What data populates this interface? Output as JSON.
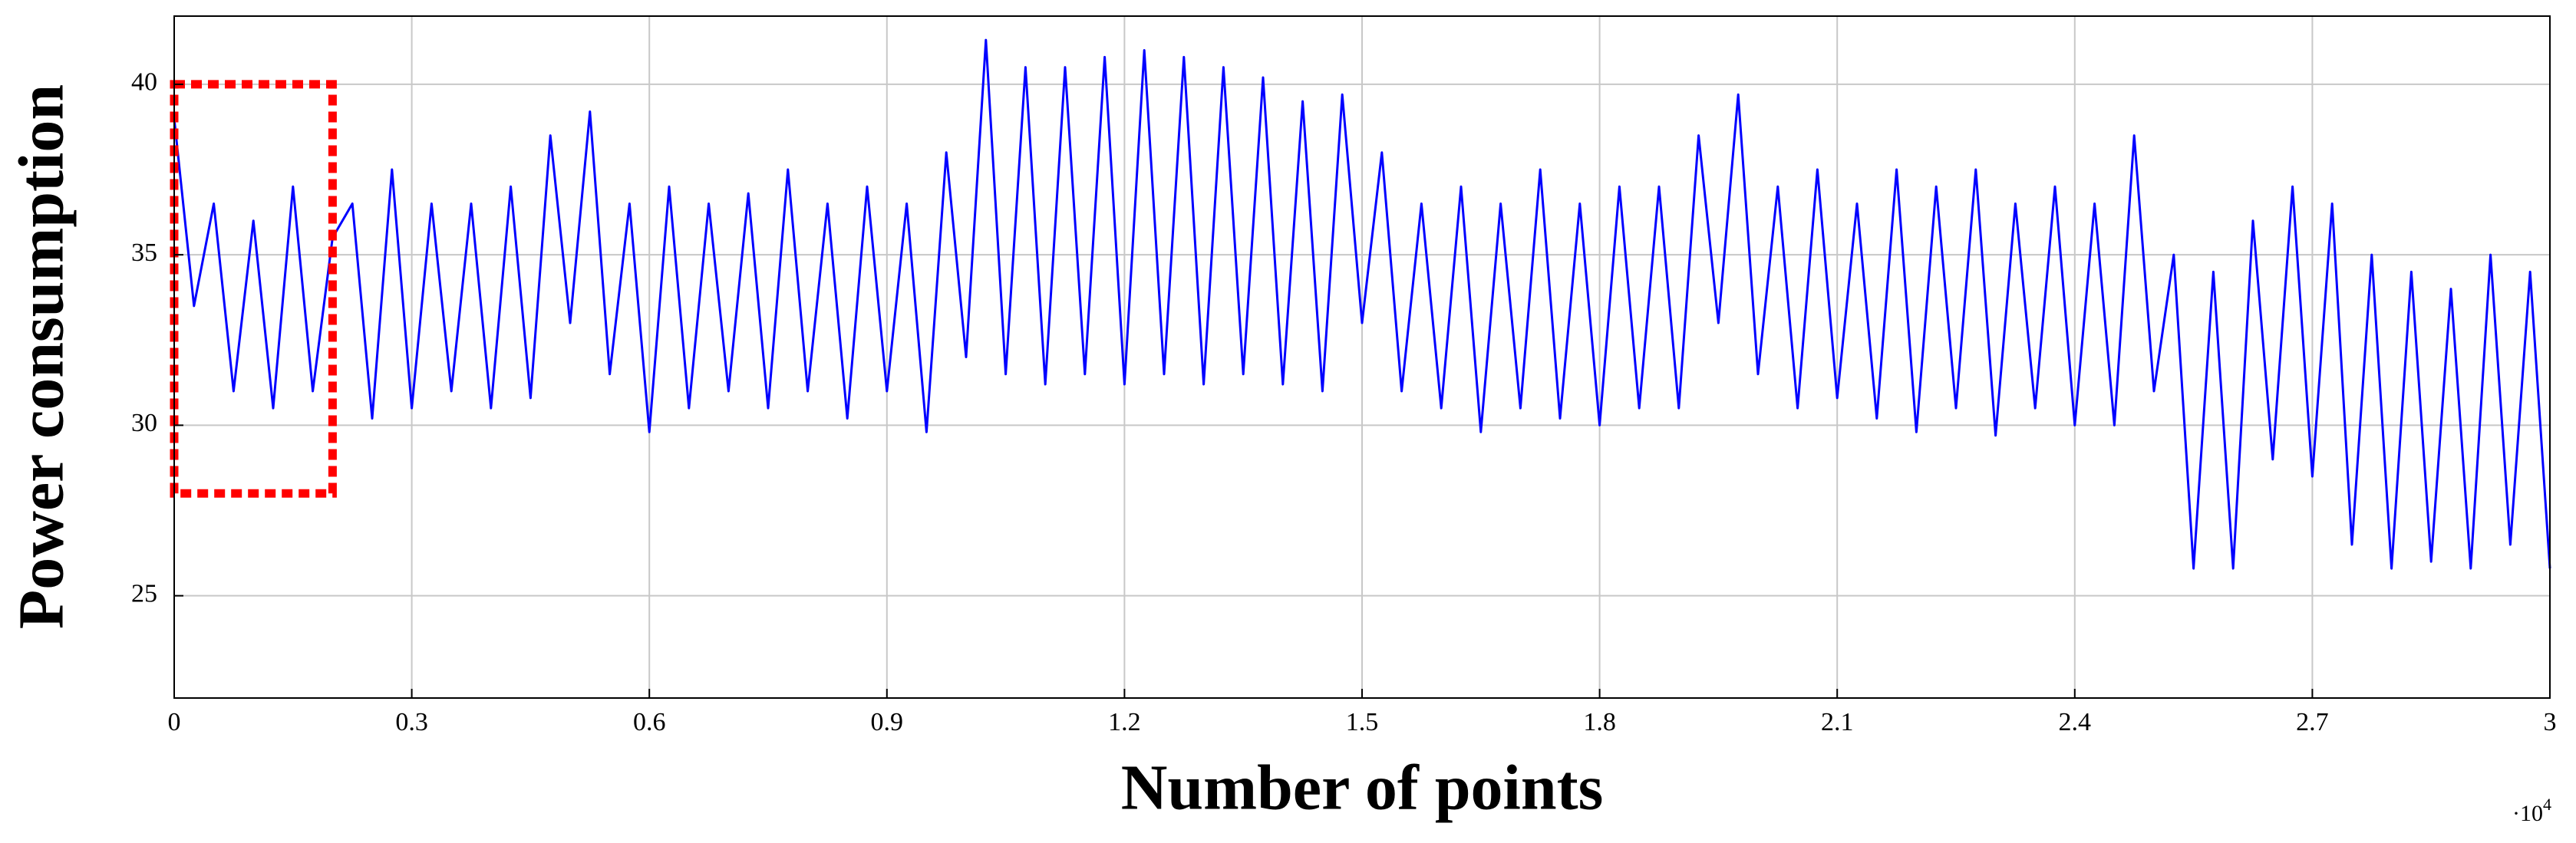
{
  "chart_data": {
    "type": "line",
    "xlabel": "Number of points",
    "ylabel": "Power consumption",
    "x_multiplier": {
      "base": "·10",
      "exponent": "4"
    },
    "xlim": [
      0,
      3
    ],
    "ylim": [
      22,
      42
    ],
    "xticks": [
      0,
      0.3,
      0.6,
      0.9,
      1.2,
      1.5,
      1.8,
      2.1,
      2.4,
      2.7,
      3
    ],
    "yticks": [
      25,
      30,
      35,
      40
    ],
    "grid": true,
    "highlight": {
      "xlim": [
        0,
        0.2
      ],
      "ylim": [
        28,
        40
      ],
      "color": "#ff0000"
    },
    "x": [
      0,
      0.025,
      0.05,
      0.075,
      0.1,
      0.125,
      0.15,
      0.175,
      0.2,
      0.225,
      0.25,
      0.275,
      0.3,
      0.325,
      0.35,
      0.375,
      0.4,
      0.425,
      0.45,
      0.475,
      0.5,
      0.525,
      0.55,
      0.575,
      0.6,
      0.625,
      0.65,
      0.675,
      0.7,
      0.725,
      0.75,
      0.775,
      0.8,
      0.825,
      0.85,
      0.875,
      0.9,
      0.925,
      0.95,
      0.975,
      1,
      1.025,
      1.05,
      1.075,
      1.1,
      1.125,
      1.15,
      1.175,
      1.2,
      1.225,
      1.25,
      1.275,
      1.3,
      1.325,
      1.35,
      1.375,
      1.4,
      1.425,
      1.45,
      1.475,
      1.5,
      1.525,
      1.55,
      1.575,
      1.6,
      1.625,
      1.65,
      1.675,
      1.7,
      1.725,
      1.75,
      1.775,
      1.8,
      1.825,
      1.85,
      1.875,
      1.9,
      1.925,
      1.95,
      1.975,
      2,
      2.025,
      2.05,
      2.075,
      2.1,
      2.125,
      2.15,
      2.175,
      2.2,
      2.225,
      2.25,
      2.275,
      2.3,
      2.325,
      2.35,
      2.375,
      2.4,
      2.425,
      2.45,
      2.475,
      2.5,
      2.525,
      2.55,
      2.575,
      2.6,
      2.625,
      2.65,
      2.675,
      2.7,
      2.725,
      2.75,
      2.775,
      2.8,
      2.825,
      2.85,
      2.875,
      2.9,
      2.925,
      2.95,
      2.975,
      3
    ],
    "series": [
      {
        "color": "#0000ff",
        "values": [
          39,
          33.5,
          36.5,
          31,
          36,
          30.5,
          37,
          31,
          35.5,
          36.5,
          30.2,
          37.5,
          30.5,
          36.5,
          31,
          36.5,
          30.5,
          37,
          30.8,
          38.5,
          33,
          39.2,
          31.5,
          36.5,
          29.8,
          37,
          30.5,
          36.5,
          31,
          36.8,
          30.5,
          37.5,
          31,
          36.5,
          30.2,
          37,
          31,
          36.5,
          29.8,
          38,
          32,
          41.3,
          31.5,
          40.5,
          31.2,
          40.5,
          31.5,
          40.8,
          31.2,
          41,
          31.5,
          40.8,
          31.2,
          40.5,
          31.5,
          40.2,
          31.2,
          39.5,
          31,
          39.7,
          33,
          38,
          31,
          36.5,
          30.5,
          37,
          29.8,
          36.5,
          30.5,
          37.5,
          30.2,
          36.5,
          30,
          37,
          30.5,
          37,
          30.5,
          38.5,
          33,
          39.7,
          31.5,
          37,
          30.5,
          37.5,
          30.8,
          36.5,
          30.2,
          37.5,
          29.8,
          37,
          30.5,
          37.5,
          29.7,
          36.5,
          30.5,
          37,
          30,
          36.5,
          30,
          38.5,
          31,
          35,
          25.8,
          34.5,
          25.8,
          36,
          29,
          37,
          28.5,
          36.5,
          26.5,
          35,
          25.8,
          34.5,
          26,
          34,
          25.8,
          35,
          26.5,
          34.5,
          25.8
        ]
      }
    ]
  }
}
